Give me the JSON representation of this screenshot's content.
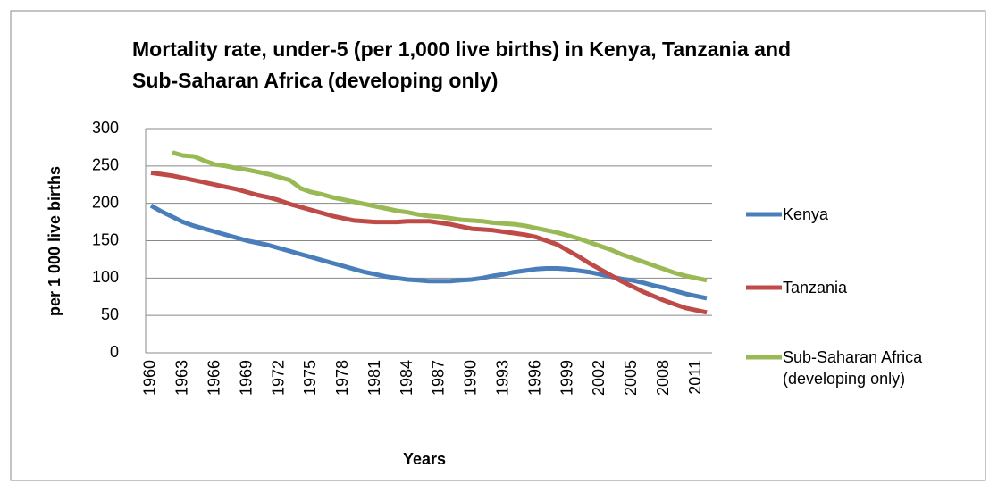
{
  "chart_data": {
    "type": "line",
    "title": "Mortality rate, under-5 (per 1,000 live births) in Kenya, Tanzania and Sub-Saharan Africa (developing only)",
    "x_label": "Years",
    "y_label": "per 1 000 live births",
    "categories": [
      "1960",
      null,
      null,
      "1963",
      null,
      null,
      "1966",
      null,
      null,
      "1969",
      null,
      null,
      "1972",
      null,
      null,
      "1975",
      null,
      null,
      "1978",
      null,
      null,
      "1981",
      null,
      null,
      "1984",
      null,
      null,
      "1987",
      null,
      null,
      "1990",
      null,
      null,
      "1993",
      null,
      null,
      "1996",
      null,
      null,
      "1999",
      null,
      null,
      "2002",
      null,
      null,
      "2005",
      null,
      null,
      "2008",
      null,
      null,
      "2011",
      null
    ],
    "series": [
      {
        "name": "Kenya",
        "color": "#4a7ebb",
        "values": [
          197,
          189,
          182,
          175,
          170,
          166,
          162,
          158,
          154,
          150,
          147,
          144,
          140,
          136,
          132,
          128,
          124,
          120,
          116,
          112,
          108,
          105,
          102,
          100,
          98,
          97,
          96,
          96,
          96,
          97,
          98,
          100,
          103,
          105,
          108,
          110,
          112,
          113,
          113,
          112,
          110,
          108,
          105,
          102,
          99,
          97,
          94,
          90,
          87,
          83,
          79,
          76,
          73
        ]
      },
      {
        "name": "Tanzania",
        "color": "#be4b48",
        "values": [
          241,
          239,
          237,
          234,
          231,
          228,
          225,
          222,
          219,
          215,
          211,
          208,
          204,
          199,
          195,
          191,
          187,
          183,
          180,
          177,
          176,
          175,
          175,
          175,
          176,
          176,
          176,
          174,
          172,
          169,
          166,
          165,
          164,
          162,
          160,
          158,
          155,
          150,
          145,
          137,
          129,
          120,
          112,
          104,
          96,
          89,
          82,
          76,
          70,
          65,
          60,
          57,
          54
        ]
      },
      {
        "name": "Sub-Saharan Africa (developing only)",
        "color": "#98b954",
        "values": [
          null,
          null,
          268,
          264,
          263,
          257,
          252,
          250,
          247,
          245,
          242,
          239,
          235,
          231,
          220,
          215,
          212,
          208,
          205,
          202,
          199,
          196,
          193,
          190,
          188,
          185,
          183,
          182,
          180,
          178,
          177,
          176,
          174,
          173,
          172,
          170,
          167,
          164,
          161,
          157,
          153,
          148,
          143,
          138,
          132,
          127,
          122,
          117,
          112,
          107,
          103,
          100,
          97
        ]
      }
    ],
    "ylim": [
      0,
      300
    ],
    "yticks": [
      0,
      50,
      100,
      150,
      200,
      250,
      300
    ],
    "grid": true
  }
}
